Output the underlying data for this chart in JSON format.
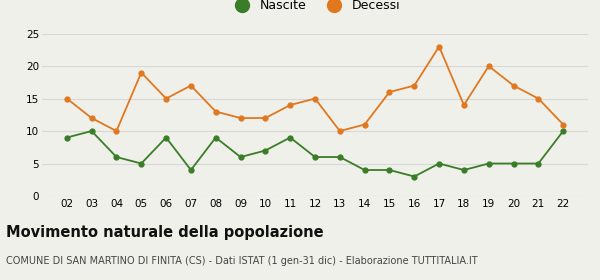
{
  "years": [
    "02",
    "03",
    "04",
    "05",
    "06",
    "07",
    "08",
    "09",
    "10",
    "11",
    "12",
    "13",
    "14",
    "15",
    "16",
    "17",
    "18",
    "19",
    "20",
    "21",
    "22"
  ],
  "nascite": [
    9,
    10,
    6,
    5,
    9,
    4,
    9,
    6,
    7,
    9,
    6,
    6,
    4,
    4,
    3,
    5,
    4,
    5,
    5,
    5,
    10
  ],
  "decessi": [
    15,
    12,
    10,
    19,
    15,
    17,
    13,
    12,
    12,
    14,
    15,
    10,
    11,
    16,
    17,
    23,
    14,
    20,
    17,
    15,
    11
  ],
  "nascite_color": "#3a7d27",
  "decessi_color": "#e07820",
  "title": "Movimento naturale della popolazione",
  "subtitle": "COMUNE DI SAN MARTINO DI FINITA (CS) - Dati ISTAT (1 gen-31 dic) - Elaborazione TUTTITALIA.IT",
  "legend_nascite": "Nascite",
  "legend_decessi": "Decessi",
  "ylim": [
    0,
    25
  ],
  "yticks": [
    0,
    5,
    10,
    15,
    20,
    25
  ],
  "background_color": "#f0f0eb",
  "grid_color": "#d8d8d8",
  "title_fontsize": 10.5,
  "subtitle_fontsize": 7.0,
  "tick_fontsize": 7.5,
  "legend_fontsize": 9.0
}
